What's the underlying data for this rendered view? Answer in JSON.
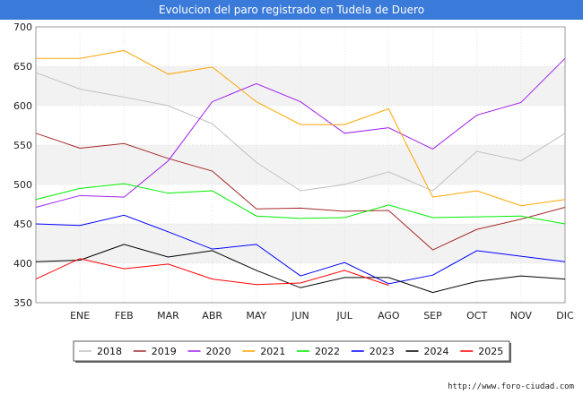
{
  "header": {
    "title": "Evolucion del paro registrado en Tudela de Duero"
  },
  "footer": {
    "url": "http://www.foro-ciudad.com"
  },
  "chart_data": {
    "type": "line",
    "title": "Evolucion del paro registrado en Tudela de Duero",
    "categories": [
      "",
      "ENE",
      "FEB",
      "MAR",
      "ABR",
      "MAY",
      "JUN",
      "JUL",
      "AGO",
      "SEP",
      "OCT",
      "NOV",
      "DIC"
    ],
    "ylim": [
      350,
      700
    ],
    "yticks": [
      350,
      400,
      450,
      500,
      550,
      600,
      650,
      700
    ],
    "grid": "banded",
    "legend_position": "bottom",
    "series": [
      {
        "name": "2018",
        "color": "#c0c0c0",
        "values": [
          642,
          621,
          611,
          600,
          577,
          528,
          492,
          500,
          516,
          492,
          542,
          530,
          565
        ]
      },
      {
        "name": "2019",
        "color": "#a52a2a",
        "values": [
          565,
          546,
          552,
          533,
          517,
          469,
          470,
          466,
          467,
          417,
          443,
          456,
          471
        ]
      },
      {
        "name": "2020",
        "color": "#a020f0",
        "values": [
          471,
          486,
          484,
          530,
          605,
          628,
          605,
          565,
          572,
          545,
          588,
          604,
          660
        ]
      },
      {
        "name": "2021",
        "color": "#ffa500",
        "values": [
          660,
          660,
          670,
          640,
          649,
          605,
          576,
          576,
          596,
          484,
          492,
          473,
          481
        ]
      },
      {
        "name": "2022",
        "color": "#00ee00",
        "values": [
          481,
          495,
          501,
          489,
          492,
          460,
          457,
          458,
          474,
          458,
          459,
          460,
          450
        ]
      },
      {
        "name": "2023",
        "color": "#0000ff",
        "values": [
          450,
          448,
          461,
          440,
          418,
          424,
          384,
          401,
          374,
          385,
          416,
          409,
          402
        ]
      },
      {
        "name": "2024",
        "color": "#000000",
        "values": [
          402,
          404,
          424,
          408,
          416,
          391,
          369,
          382,
          382,
          363,
          377,
          384,
          380
        ]
      },
      {
        "name": "2025",
        "color": "#ff0000",
        "values": [
          380,
          406,
          393,
          399,
          380,
          373,
          375,
          391,
          372,
          null,
          null,
          null,
          null
        ]
      }
    ]
  }
}
